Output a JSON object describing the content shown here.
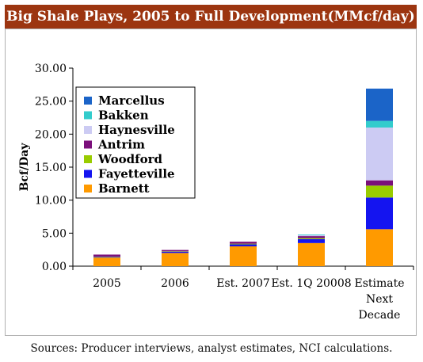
{
  "title": "Big Shale Plays, 2005 to Full Development(MMcf/day)",
  "source_note": "Sources: Producer interviews, analyst estimates, NCI calculations.",
  "chart_data": {
    "type": "bar",
    "stacked": true,
    "title": "Big Shale Plays, 2005 to Full Development(MMcf/day)",
    "xlabel": "",
    "ylabel": "Bcf/Day",
    "ylim": [
      0,
      30
    ],
    "yticks": [
      "0.00",
      "5.00",
      "10.00",
      "15.00",
      "20.00",
      "25.00",
      "30.00"
    ],
    "grid": false,
    "legend_position": "top-left",
    "categories": [
      [
        "2005"
      ],
      [
        "2006"
      ],
      [
        "Est. 2007"
      ],
      [
        "Est. 1Q 20008"
      ],
      [
        "Estimate",
        "Next",
        "Decade"
      ]
    ],
    "series": [
      {
        "name": "Barnett",
        "color": "#ff9a00",
        "values": [
          1.3,
          2.0,
          3.0,
          3.5,
          5.6
        ]
      },
      {
        "name": "Fayetteville",
        "color": "#1414f0",
        "values": [
          0.1,
          0.2,
          0.3,
          0.6,
          4.8
        ]
      },
      {
        "name": "Woodford",
        "color": "#99cc00",
        "values": [
          0.05,
          0.05,
          0.1,
          0.15,
          1.8
        ]
      },
      {
        "name": "Antrim",
        "color": "#7b0f7b",
        "values": [
          0.3,
          0.2,
          0.3,
          0.3,
          0.8
        ]
      },
      {
        "name": "Haynesville",
        "color": "#cccbf3",
        "values": [
          0.0,
          0.0,
          0.0,
          0.15,
          8.0
        ]
      },
      {
        "name": "Bakken",
        "color": "#33cccc",
        "values": [
          0.0,
          0.0,
          0.0,
          0.1,
          1.0
        ]
      },
      {
        "name": "Marcellus",
        "color": "#1b64c8",
        "values": [
          0.0,
          0.0,
          0.0,
          0.0,
          4.9
        ]
      }
    ],
    "legend_order": [
      "Marcellus",
      "Bakken",
      "Haynesville",
      "Antrim",
      "Woodford",
      "Fayetteville",
      "Barnett"
    ]
  }
}
